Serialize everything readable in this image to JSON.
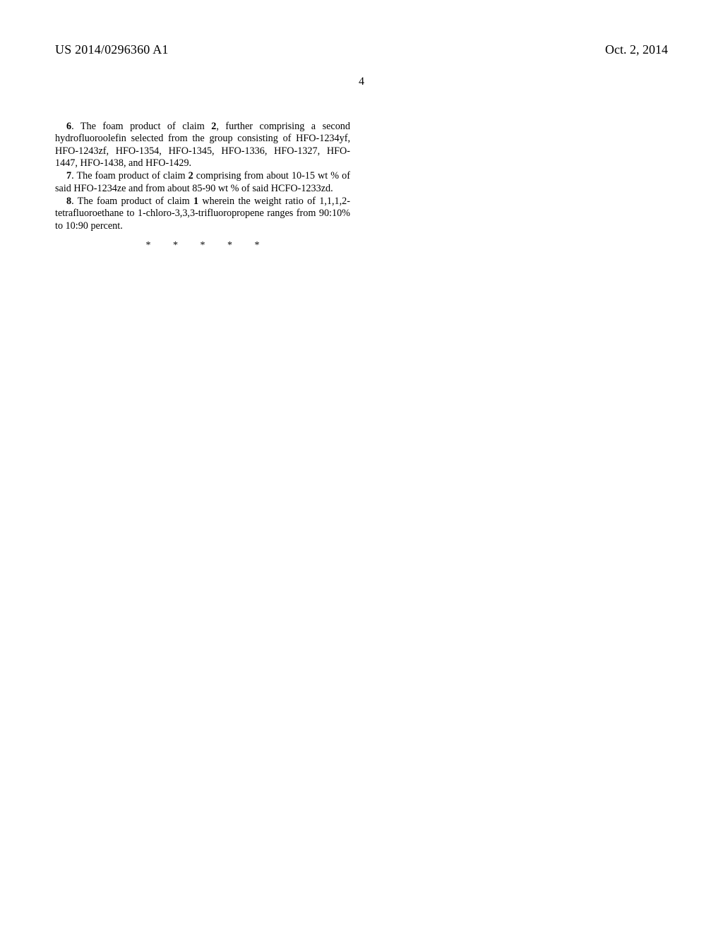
{
  "header": {
    "pub_number": "US 2014/0296360 A1",
    "pub_date": "Oct. 2, 2014"
  },
  "page_number": "4",
  "claims": [
    {
      "num": "6",
      "ref": "2",
      "text_before": ". The foam product of claim ",
      "text_after": ", further comprising a second hydrofluoroolefin selected from the group consisting of HFO-1234yf, HFO-1243zf, HFO-1354, HFO-1345, HFO-1336, HFO-1327, HFO-1447, HFO-1438, and HFO-1429."
    },
    {
      "num": "7",
      "ref": "2",
      "text_before": ". The foam product of claim ",
      "text_after": " comprising from about 10-15 wt % of said HFO-1234ze and from about 85-90 wt % of said HCFO-1233zd."
    },
    {
      "num": "8",
      "ref": "1",
      "text_before": ". The foam product of claim ",
      "text_after": " wherein the weight ratio of 1,1,1,2-tetrafluoroethane to 1-chloro-3,3,3-trifluoropropene ranges from 90:10% to 10:90 percent."
    }
  ],
  "end_marks": "* * * * *"
}
